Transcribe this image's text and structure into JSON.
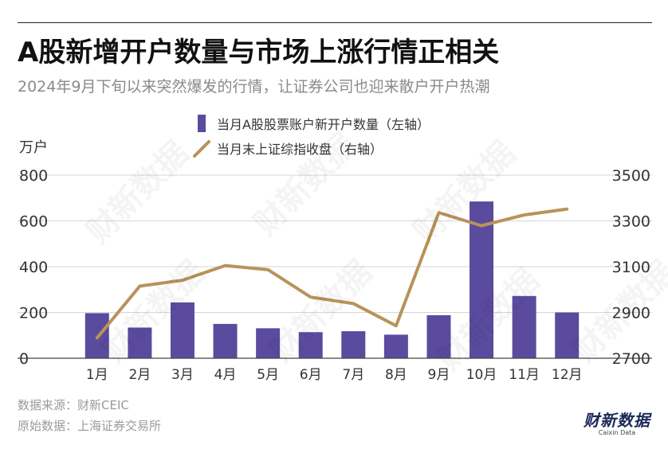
{
  "title": "A股新增开户数量与市场上涨行情正相关",
  "subtitle": "2024年9月下旬以来突然爆发的行情，让证券公司也迎来散户开户热潮",
  "footer": {
    "source": "数据来源：财新CEIC",
    "original": "原始数据：上海证券交易所"
  },
  "logo": {
    "main": "财新数据",
    "sub": "Caixin Data"
  },
  "watermark_text": "财新数据",
  "chart_data": {
    "type": "bar+line",
    "categories": [
      "1月",
      "2月",
      "3月",
      "4月",
      "5月",
      "6月",
      "7月",
      "8月",
      "9月",
      "10月",
      "11月",
      "12月"
    ],
    "left_axis": {
      "label": "万户",
      "ticks": [
        "0",
        "200",
        "400",
        "600",
        "800"
      ],
      "ylim": [
        0,
        800
      ]
    },
    "right_axis": {
      "ticks": [
        "2700",
        "2900",
        "3100",
        "3300",
        "3500"
      ],
      "ylim": [
        2700,
        3500
      ]
    },
    "series": [
      {
        "name": "当月A股股票账户新开户数量（左轴）",
        "type": "bar",
        "axis": "left",
        "color": "#5a4b9e",
        "values": [
          197,
          134,
          244,
          150,
          131,
          114,
          118,
          103,
          188,
          685,
          272,
          200
        ]
      },
      {
        "name": "当月末上证综指收盘（右轴）",
        "type": "line",
        "axis": "right",
        "color": "#b8935a",
        "values": [
          2789,
          3015,
          3041,
          3105,
          3087,
          2967,
          2939,
          2842,
          3336,
          3279,
          3326,
          3352
        ]
      }
    ],
    "grid": true,
    "legend_position": "top-center"
  }
}
